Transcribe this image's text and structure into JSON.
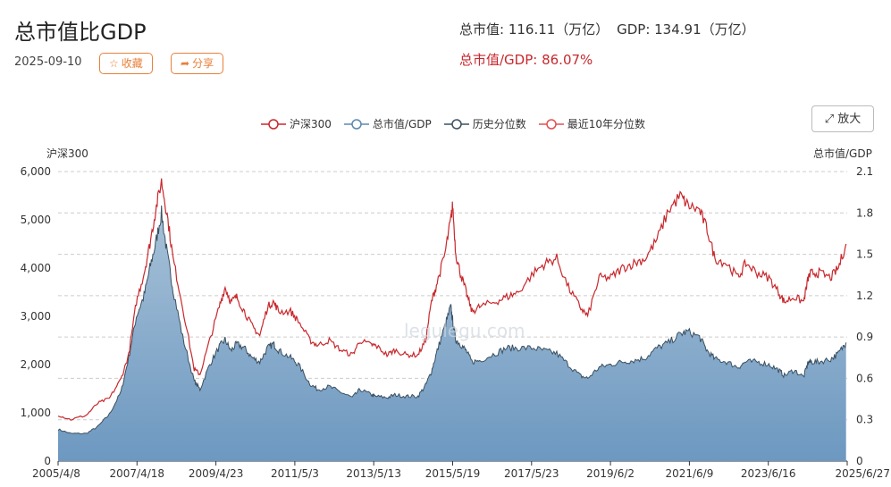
{
  "header": {
    "title": "总市值比GDP",
    "date": "2025-09-10",
    "favorite_label": "收藏",
    "share_label": "分享",
    "market_cap_text": "总市值: 116.11（万亿）",
    "gdp_text": "GDP: 134.91（万亿）",
    "ratio_text": "总市值/GDP: 86.07%",
    "zoom_label": "放大",
    "watermark": "legulegu.com"
  },
  "colors": {
    "hs300": "#c8282d",
    "ratio_line": "#3b5060",
    "area_top": "#a8c2d8",
    "area_bottom": "#6d98c0",
    "accent": "#e8803a"
  },
  "icons": {
    "favorite": "star-icon",
    "share": "share-arrow-icon",
    "zoom": "expand-arrows-icon"
  },
  "chart_data": {
    "type": "line",
    "ylabel_left": "沪深300",
    "ylabel_right": "总市值/GDP",
    "legend": [
      "沪深300",
      "总市值/GDP",
      "历史分位数",
      "最近10年分位数"
    ],
    "x_ticks": [
      "2005/4/8",
      "2007/4/18",
      "2009/4/23",
      "2011/5/3",
      "2013/5/13",
      "2015/5/19",
      "2017/5/23",
      "2019/6/2",
      "2021/6/9",
      "2023/6/16",
      "2025/6/27"
    ],
    "y_left_ticks": [
      "0",
      "1,000",
      "2,000",
      "3,000",
      "4,000",
      "5,000",
      "6,000"
    ],
    "y_right_ticks": [
      "0",
      "0.3",
      "0.6",
      "0.9",
      "1.2",
      "1.5",
      "1.8",
      "2.1"
    ],
    "ylim_left": [
      0,
      6000
    ],
    "ylim_right": [
      0,
      2.1
    ],
    "grid": "horizontal-dashed",
    "series": [
      {
        "name": "沪深300",
        "axis": "left",
        "x": [
          2005.27,
          2005.6,
          2006.0,
          2006.3,
          2006.6,
          2006.9,
          2007.1,
          2007.3,
          2007.5,
          2007.65,
          2007.8,
          2007.95,
          2008.1,
          2008.25,
          2008.5,
          2008.8,
          2008.95,
          2009.2,
          2009.45,
          2009.6,
          2009.75,
          2009.9,
          2010.1,
          2010.3,
          2010.5,
          2010.7,
          2010.85,
          2011.0,
          2011.3,
          2011.5,
          2011.8,
          2012.0,
          2012.3,
          2012.6,
          2012.9,
          2013.1,
          2013.4,
          2013.5,
          2013.8,
          2014.0,
          2014.3,
          2014.6,
          2014.8,
          2014.95,
          2015.1,
          2015.3,
          2015.45,
          2015.5,
          2015.58,
          2015.7,
          2015.85,
          2016.0,
          2016.2,
          2016.6,
          2016.9,
          2017.2,
          2017.6,
          2017.9,
          2018.2,
          2018.5,
          2018.8,
          2019.0,
          2019.3,
          2019.6,
          2019.9,
          2020.2,
          2020.5,
          2020.8,
          2021.1,
          2021.4,
          2021.6,
          2021.9,
          2022.1,
          2022.3,
          2022.6,
          2022.9,
          2023.1,
          2023.4,
          2023.7,
          2023.95,
          2024.1,
          2024.35,
          2024.6,
          2024.72,
          2024.8,
          2025.0,
          2025.3,
          2025.5,
          2025.7
        ],
        "y": [
          950,
          860,
          950,
          1200,
          1300,
          1700,
          2200,
          3300,
          3900,
          4500,
          5200,
          5800,
          5100,
          4200,
          3200,
          1900,
          1800,
          2500,
          3200,
          3600,
          3300,
          3400,
          3100,
          2800,
          2600,
          3200,
          3300,
          3100,
          3100,
          2900,
          2500,
          2400,
          2500,
          2300,
          2200,
          2500,
          2400,
          2400,
          2200,
          2300,
          2200,
          2200,
          2500,
          3300,
          3700,
          4300,
          5000,
          5300,
          4300,
          3900,
          3500,
          3100,
          3200,
          3300,
          3400,
          3500,
          3900,
          4100,
          4200,
          3600,
          3200,
          3000,
          3800,
          3800,
          4000,
          4100,
          4200,
          4600,
          5200,
          5500,
          5300,
          5200,
          4800,
          4200,
          4100,
          3800,
          4100,
          3900,
          3800,
          3500,
          3300,
          3400,
          3300,
          3800,
          3900,
          3900,
          3800,
          4000,
          4500
        ]
      },
      {
        "name": "总市值/GDP",
        "axis": "right",
        "x": [
          2005.27,
          2005.6,
          2006.0,
          2006.3,
          2006.6,
          2006.9,
          2007.1,
          2007.3,
          2007.5,
          2007.65,
          2007.8,
          2007.95,
          2008.1,
          2008.25,
          2008.5,
          2008.8,
          2008.95,
          2009.2,
          2009.45,
          2009.6,
          2009.75,
          2009.9,
          2010.1,
          2010.3,
          2010.5,
          2010.7,
          2010.85,
          2011.0,
          2011.3,
          2011.5,
          2011.8,
          2012.0,
          2012.3,
          2012.6,
          2012.9,
          2013.1,
          2013.4,
          2013.5,
          2013.8,
          2014.0,
          2014.3,
          2014.6,
          2014.8,
          2014.95,
          2015.1,
          2015.3,
          2015.45,
          2015.5,
          2015.58,
          2015.7,
          2015.85,
          2016.0,
          2016.2,
          2016.6,
          2016.9,
          2017.2,
          2017.6,
          2017.9,
          2018.2,
          2018.5,
          2018.8,
          2019.0,
          2019.3,
          2019.6,
          2019.9,
          2020.2,
          2020.5,
          2020.8,
          2021.1,
          2021.4,
          2021.6,
          2021.9,
          2022.1,
          2022.3,
          2022.6,
          2022.9,
          2023.1,
          2023.4,
          2023.7,
          2023.95,
          2024.1,
          2024.35,
          2024.6,
          2024.72,
          2024.8,
          2025.0,
          2025.3,
          2025.5,
          2025.7
        ],
        "y": [
          0.23,
          0.2,
          0.2,
          0.25,
          0.34,
          0.5,
          0.75,
          1.05,
          1.2,
          1.4,
          1.58,
          1.8,
          1.5,
          1.25,
          0.9,
          0.58,
          0.52,
          0.7,
          0.83,
          0.88,
          0.8,
          0.85,
          0.82,
          0.75,
          0.72,
          0.82,
          0.85,
          0.8,
          0.75,
          0.7,
          0.56,
          0.52,
          0.54,
          0.5,
          0.46,
          0.52,
          0.48,
          0.47,
          0.46,
          0.48,
          0.47,
          0.47,
          0.55,
          0.65,
          0.8,
          0.98,
          1.12,
          1.02,
          0.88,
          0.85,
          0.8,
          0.72,
          0.73,
          0.78,
          0.82,
          0.82,
          0.82,
          0.8,
          0.78,
          0.7,
          0.62,
          0.6,
          0.68,
          0.7,
          0.72,
          0.73,
          0.75,
          0.82,
          0.86,
          0.92,
          0.94,
          0.9,
          0.8,
          0.74,
          0.72,
          0.68,
          0.72,
          0.72,
          0.7,
          0.66,
          0.62,
          0.66,
          0.61,
          0.72,
          0.72,
          0.72,
          0.74,
          0.78,
          0.86
        ]
      }
    ]
  }
}
